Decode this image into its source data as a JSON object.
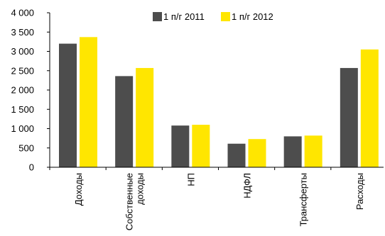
{
  "chart_data": {
    "type": "bar",
    "categories": [
      "Доходы",
      "Собственные доходы",
      "НП",
      "НДФЛ",
      "Трансферты",
      "Расходы"
    ],
    "category_lines": [
      [
        "Доходы"
      ],
      [
        "Собственные",
        "доходы"
      ],
      [
        "НП"
      ],
      [
        "НДФЛ"
      ],
      [
        "Трансферты"
      ],
      [
        "Расходы"
      ]
    ],
    "series": [
      {
        "name": "1 п/г 2011",
        "color": "#4d4d4d",
        "values": [
          3200,
          2360,
          1080,
          610,
          800,
          2570
        ]
      },
      {
        "name": "1 п/г 2012",
        "color": "#ffe600",
        "values": [
          3370,
          2570,
          1100,
          730,
          820,
          3050
        ]
      }
    ],
    "y_ticks": [
      "0",
      "500",
      "1 000",
      "1 500",
      "2 000",
      "2 500",
      "3 000",
      "3 500",
      "4 000"
    ],
    "ylim": [
      0,
      4000
    ],
    "grid": false,
    "legend_position": "top"
  }
}
